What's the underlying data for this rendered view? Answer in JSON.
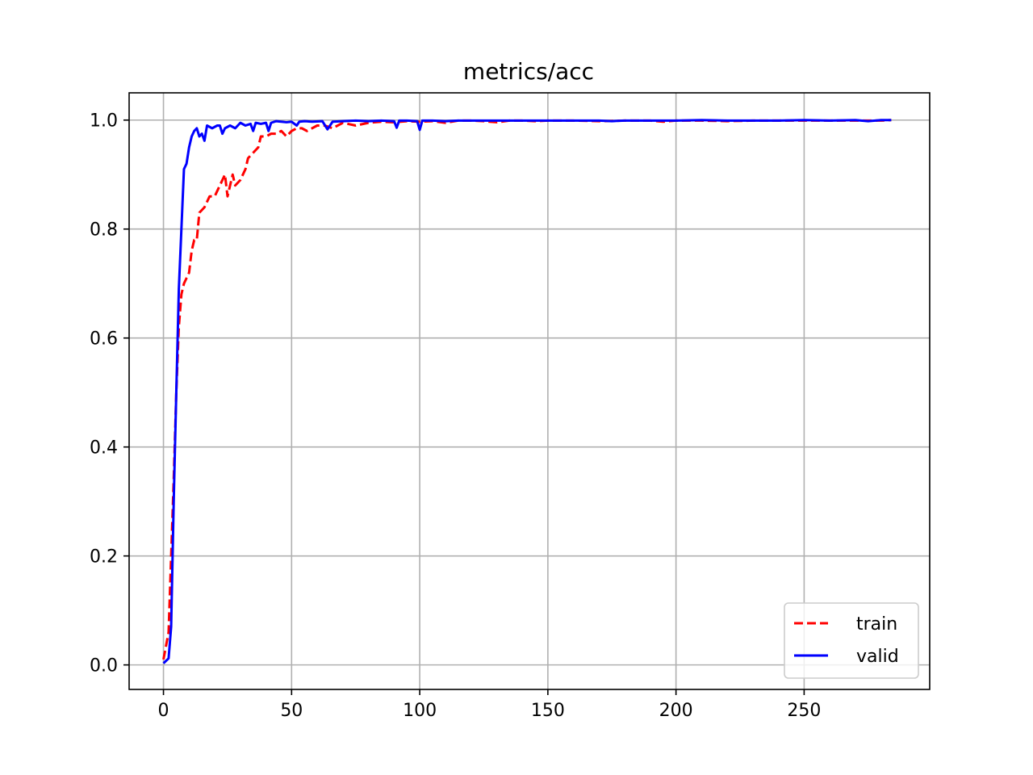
{
  "chart_data": {
    "type": "line",
    "title": "metrics/acc",
    "xlabel": "",
    "ylabel": "",
    "xlim": [
      -13.4,
      299
    ],
    "ylim": [
      -0.045,
      1.05
    ],
    "xticks": [
      0,
      50,
      100,
      150,
      200,
      250
    ],
    "yticks": [
      0.0,
      0.2,
      0.4,
      0.6,
      0.8,
      1.0
    ],
    "xtick_labels": [
      "0",
      "50",
      "100",
      "150",
      "200",
      "250"
    ],
    "ytick_labels": [
      "0.0",
      "0.2",
      "0.4",
      "0.6",
      "0.8",
      "1.0"
    ],
    "grid": true,
    "legend_position": "lower-right",
    "series": [
      {
        "name": "train",
        "color": "#ff0000",
        "style": "dashed",
        "points": [
          [
            0,
            0.01
          ],
          [
            2,
            0.06
          ],
          [
            3,
            0.2
          ],
          [
            4,
            0.34
          ],
          [
            5,
            0.5
          ],
          [
            6,
            0.62
          ],
          [
            7,
            0.68
          ],
          [
            8,
            0.7
          ],
          [
            9,
            0.71
          ],
          [
            10,
            0.72
          ],
          [
            11,
            0.76
          ],
          [
            12,
            0.78
          ],
          [
            13,
            0.78
          ],
          [
            14,
            0.83
          ],
          [
            16,
            0.84
          ],
          [
            18,
            0.86
          ],
          [
            20,
            0.86
          ],
          [
            22,
            0.88
          ],
          [
            24,
            0.9
          ],
          [
            25,
            0.86
          ],
          [
            27,
            0.9
          ],
          [
            28,
            0.88
          ],
          [
            30,
            0.89
          ],
          [
            32,
            0.91
          ],
          [
            33,
            0.93
          ],
          [
            35,
            0.94
          ],
          [
            37,
            0.95
          ],
          [
            38,
            0.97
          ],
          [
            40,
            0.97
          ],
          [
            42,
            0.975
          ],
          [
            44,
            0.975
          ],
          [
            46,
            0.98
          ],
          [
            48,
            0.97
          ],
          [
            50,
            0.98
          ],
          [
            52,
            0.985
          ],
          [
            54,
            0.985
          ],
          [
            56,
            0.98
          ],
          [
            58,
            0.985
          ],
          [
            60,
            0.99
          ],
          [
            63,
            0.99
          ],
          [
            66,
            0.985
          ],
          [
            70,
            0.995
          ],
          [
            75,
            0.99
          ],
          [
            80,
            0.995
          ],
          [
            85,
            0.997
          ],
          [
            90,
            0.996
          ],
          [
            95,
            0.998
          ],
          [
            100,
            0.997
          ],
          [
            105,
            0.998
          ],
          [
            110,
            0.995
          ],
          [
            115,
            0.999
          ],
          [
            120,
            0.999
          ],
          [
            125,
            0.998
          ],
          [
            130,
            0.996
          ],
          [
            135,
            0.999
          ],
          [
            140,
            0.999
          ],
          [
            145,
            0.998
          ],
          [
            150,
            0.999
          ],
          [
            160,
            0.999
          ],
          [
            170,
            0.998
          ],
          [
            180,
            0.999
          ],
          [
            190,
            0.999
          ],
          [
            195,
            0.997
          ],
          [
            200,
            0.999
          ],
          [
            210,
            0.999
          ],
          [
            220,
            0.998
          ],
          [
            230,
            0.999
          ],
          [
            240,
            0.999
          ],
          [
            250,
            0.999
          ],
          [
            260,
            0.999
          ],
          [
            270,
            0.999
          ],
          [
            280,
            0.999
          ],
          [
            284,
            1.0
          ]
        ]
      },
      {
        "name": "valid",
        "color": "#0000ff",
        "style": "solid",
        "points": [
          [
            0,
            0.003
          ],
          [
            2,
            0.012
          ],
          [
            3,
            0.07
          ],
          [
            4,
            0.3
          ],
          [
            5,
            0.5
          ],
          [
            6,
            0.69
          ],
          [
            7,
            0.8
          ],
          [
            8,
            0.91
          ],
          [
            9,
            0.92
          ],
          [
            10,
            0.95
          ],
          [
            11,
            0.97
          ],
          [
            12,
            0.98
          ],
          [
            13,
            0.985
          ],
          [
            14,
            0.97
          ],
          [
            15,
            0.975
          ],
          [
            16,
            0.962
          ],
          [
            17,
            0.99
          ],
          [
            19,
            0.985
          ],
          [
            21,
            0.99
          ],
          [
            22,
            0.99
          ],
          [
            23,
            0.975
          ],
          [
            24,
            0.985
          ],
          [
            26,
            0.99
          ],
          [
            28,
            0.985
          ],
          [
            30,
            0.995
          ],
          [
            32,
            0.99
          ],
          [
            34,
            0.993
          ],
          [
            35,
            0.98
          ],
          [
            36,
            0.995
          ],
          [
            38,
            0.993
          ],
          [
            40,
            0.995
          ],
          [
            41,
            0.98
          ],
          [
            42,
            0.995
          ],
          [
            44,
            0.998
          ],
          [
            46,
            0.997
          ],
          [
            48,
            0.996
          ],
          [
            50,
            0.997
          ],
          [
            52,
            0.99
          ],
          [
            53,
            0.997
          ],
          [
            55,
            0.998
          ],
          [
            58,
            0.997
          ],
          [
            62,
            0.998
          ],
          [
            64,
            0.983
          ],
          [
            66,
            0.997
          ],
          [
            70,
            0.998
          ],
          [
            75,
            0.999
          ],
          [
            80,
            0.998
          ],
          [
            85,
            0.999
          ],
          [
            90,
            0.998
          ],
          [
            91,
            0.986
          ],
          [
            92,
            0.999
          ],
          [
            95,
            0.999
          ],
          [
            99,
            0.998
          ],
          [
            100,
            0.982
          ],
          [
            101,
            0.999
          ],
          [
            105,
            0.999
          ],
          [
            110,
            0.998
          ],
          [
            115,
            0.999
          ],
          [
            120,
            0.999
          ],
          [
            130,
            0.999
          ],
          [
            140,
            0.999
          ],
          [
            150,
            0.999
          ],
          [
            160,
            0.999
          ],
          [
            170,
            0.999
          ],
          [
            175,
            0.998
          ],
          [
            180,
            0.999
          ],
          [
            185,
            0.999
          ],
          [
            190,
            0.999
          ],
          [
            195,
            0.999
          ],
          [
            200,
            0.999
          ],
          [
            210,
            1.0
          ],
          [
            220,
            0.999
          ],
          [
            230,
            0.999
          ],
          [
            240,
            0.999
          ],
          [
            250,
            1.0
          ],
          [
            260,
            0.999
          ],
          [
            270,
            1.0
          ],
          [
            275,
            0.998
          ],
          [
            280,
            1.0
          ],
          [
            284,
            1.0
          ]
        ]
      }
    ]
  }
}
